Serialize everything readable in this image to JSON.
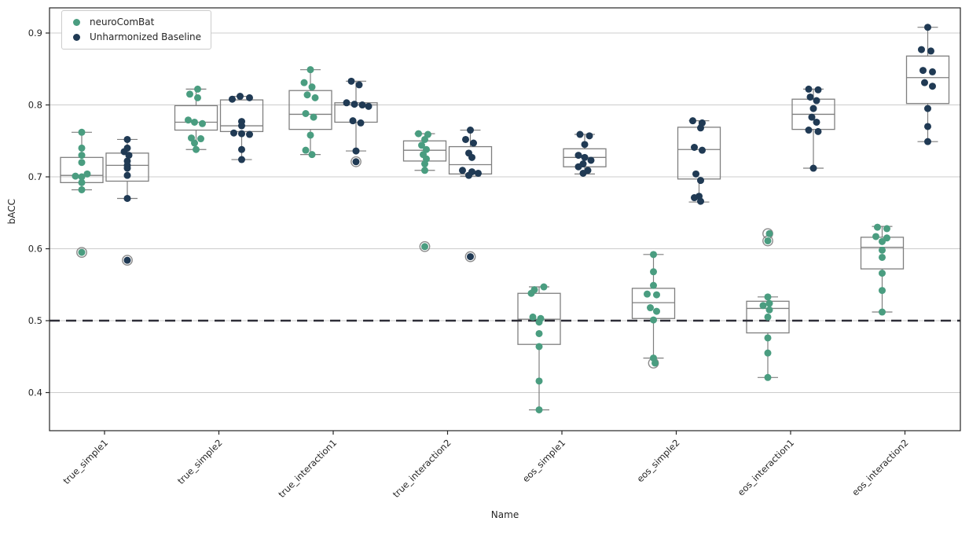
{
  "figure": {
    "ylabel": "bACC",
    "xlabel": "Name",
    "legend": {
      "items": [
        {
          "label": "neuroComBat",
          "color": "#4A9D80",
          "marker": "dot"
        },
        {
          "label": "Unharmonized Baseline",
          "color": "#203A54",
          "marker": "dot"
        }
      ]
    }
  },
  "chart_data": {
    "type": "box+strip",
    "title": "",
    "xlabel": "Name",
    "ylabel": "bACC",
    "ylim": [
      0.347,
      0.935
    ],
    "yticks": [
      0.4,
      0.5,
      0.6,
      0.7,
      0.8,
      0.9
    ],
    "grid": "horizontal",
    "legend_position": "upper left",
    "refline": {
      "y": 0.5,
      "style": "dashed",
      "color": "#2e2e38"
    },
    "categories": [
      "true_simple1",
      "true_simple2",
      "true_interaction1",
      "true_interaction2",
      "eos_simple1",
      "eos_simple2",
      "eos_interaction1",
      "eos_interaction2"
    ],
    "colors": {
      "grid": "#cccccc",
      "box_edge": "#7f7f7f",
      "spine": "#262626",
      "outlier_ring": "#8a8a8a"
    },
    "series": [
      {
        "name": "neuroComBat",
        "color": "#4A9D80",
        "groups": [
          {
            "box": {
              "q1": 0.692,
              "median": 0.702,
              "q3": 0.727,
              "lo": 0.682,
              "hi": 0.762,
              "outliers": [
                0.595
              ]
            },
            "points": [
              [
                0.762,
                0
              ],
              [
                0.74,
                0
              ],
              [
                0.73,
                0
              ],
              [
                0.72,
                0
              ],
              [
                0.704,
                7
              ],
              [
                0.701,
                -8
              ],
              [
                0.7,
                0
              ],
              [
                0.692,
                0
              ],
              [
                0.682,
                0
              ],
              [
                0.595,
                0
              ]
            ]
          },
          {
            "box": {
              "q1": 0.765,
              "median": 0.776,
              "q3": 0.799,
              "lo": 0.738,
              "hi": 0.822,
              "outliers": []
            },
            "points": [
              [
                0.822,
                2
              ],
              [
                0.815,
                -8
              ],
              [
                0.81,
                2
              ],
              [
                0.779,
                -10
              ],
              [
                0.776,
                -2
              ],
              [
                0.774,
                8
              ],
              [
                0.754,
                -6
              ],
              [
                0.753,
                6
              ],
              [
                0.747,
                -2
              ],
              [
                0.738,
                0
              ]
            ]
          },
          {
            "box": {
              "q1": 0.766,
              "median": 0.787,
              "q3": 0.82,
              "lo": 0.731,
              "hi": 0.849,
              "outliers": []
            },
            "points": [
              [
                0.849,
                0
              ],
              [
                0.831,
                -8
              ],
              [
                0.825,
                2
              ],
              [
                0.814,
                -4
              ],
              [
                0.81,
                6
              ],
              [
                0.788,
                -6
              ],
              [
                0.783,
                4
              ],
              [
                0.758,
                0
              ],
              [
                0.737,
                -6
              ],
              [
                0.731,
                2
              ]
            ]
          },
          {
            "box": {
              "q1": 0.722,
              "median": 0.737,
              "q3": 0.75,
              "lo": 0.709,
              "hi": 0.76,
              "outliers": [
                0.603
              ]
            },
            "points": [
              [
                0.76,
                -8
              ],
              [
                0.759,
                4
              ],
              [
                0.752,
                0
              ],
              [
                0.744,
                -4
              ],
              [
                0.738,
                2
              ],
              [
                0.731,
                -2
              ],
              [
                0.725,
                2
              ],
              [
                0.718,
                0
              ],
              [
                0.709,
                0
              ],
              [
                0.603,
                0
              ]
            ]
          },
          {
            "box": {
              "q1": 0.467,
              "median": 0.502,
              "q3": 0.538,
              "lo": 0.376,
              "hi": 0.547,
              "outliers": []
            },
            "points": [
              [
                0.547,
                6
              ],
              [
                0.543,
                -6
              ],
              [
                0.538,
                -10
              ],
              [
                0.505,
                -8
              ],
              [
                0.503,
                2
              ],
              [
                0.498,
                0
              ],
              [
                0.482,
                0
              ],
              [
                0.464,
                0
              ],
              [
                0.416,
                0
              ],
              [
                0.376,
                0
              ]
            ]
          },
          {
            "box": {
              "q1": 0.503,
              "median": 0.525,
              "q3": 0.545,
              "lo": 0.448,
              "hi": 0.592,
              "outliers": [
                0.441
              ]
            },
            "points": [
              [
                0.592,
                0
              ],
              [
                0.568,
                0
              ],
              [
                0.549,
                0
              ],
              [
                0.537,
                -8
              ],
              [
                0.536,
                4
              ],
              [
                0.518,
                -4
              ],
              [
                0.513,
                4
              ],
              [
                0.501,
                0
              ],
              [
                0.448,
                0
              ],
              [
                0.441,
                2
              ]
            ]
          },
          {
            "box": {
              "q1": 0.483,
              "median": 0.517,
              "q3": 0.527,
              "lo": 0.421,
              "hi": 0.533,
              "outliers": [
                0.621,
                0.611
              ]
            },
            "points": [
              [
                0.621,
                2
              ],
              [
                0.611,
                0
              ],
              [
                0.533,
                0
              ],
              [
                0.524,
                2
              ],
              [
                0.521,
                -6
              ],
              [
                0.515,
                2
              ],
              [
                0.505,
                0
              ],
              [
                0.476,
                0
              ],
              [
                0.455,
                0
              ],
              [
                0.421,
                0
              ]
            ]
          },
          {
            "box": {
              "q1": 0.572,
              "median": 0.602,
              "q3": 0.616,
              "lo": 0.512,
              "hi": 0.631,
              "outliers": []
            },
            "points": [
              [
                0.63,
                -6
              ],
              [
                0.628,
                6
              ],
              [
                0.617,
                -8
              ],
              [
                0.615,
                6
              ],
              [
                0.61,
                0
              ],
              [
                0.598,
                0
              ],
              [
                0.588,
                0
              ],
              [
                0.566,
                0
              ],
              [
                0.542,
                0
              ],
              [
                0.512,
                0
              ]
            ]
          }
        ]
      },
      {
        "name": "Unharmonized Baseline",
        "color": "#203A54",
        "groups": [
          {
            "box": {
              "q1": 0.694,
              "median": 0.716,
              "q3": 0.733,
              "lo": 0.67,
              "hi": 0.752,
              "outliers": [
                0.584
              ]
            },
            "points": [
              [
                0.752,
                0
              ],
              [
                0.74,
                0
              ],
              [
                0.735,
                -4
              ],
              [
                0.73,
                2
              ],
              [
                0.722,
                0
              ],
              [
                0.716,
                0
              ],
              [
                0.712,
                0
              ],
              [
                0.702,
                0
              ],
              [
                0.67,
                0
              ],
              [
                0.584,
                0
              ]
            ]
          },
          {
            "box": {
              "q1": 0.763,
              "median": 0.771,
              "q3": 0.807,
              "lo": 0.724,
              "hi": 0.812,
              "outliers": []
            },
            "points": [
              [
                0.812,
                -2
              ],
              [
                0.81,
                10
              ],
              [
                0.808,
                -12
              ],
              [
                0.777,
                0
              ],
              [
                0.771,
                0
              ],
              [
                0.761,
                -10
              ],
              [
                0.76,
                0
              ],
              [
                0.759,
                10
              ],
              [
                0.738,
                0
              ],
              [
                0.724,
                0
              ]
            ]
          },
          {
            "box": {
              "q1": 0.776,
              "median": 0.8,
              "q3": 0.803,
              "lo": 0.736,
              "hi": 0.833,
              "outliers": [
                0.721
              ]
            },
            "points": [
              [
                0.833,
                -6
              ],
              [
                0.828,
                4
              ],
              [
                0.803,
                -12
              ],
              [
                0.801,
                -2
              ],
              [
                0.8,
                8
              ],
              [
                0.798,
                16
              ],
              [
                0.778,
                -4
              ],
              [
                0.775,
                6
              ],
              [
                0.736,
                0
              ],
              [
                0.721,
                0
              ]
            ]
          },
          {
            "box": {
              "q1": 0.704,
              "median": 0.717,
              "q3": 0.742,
              "lo": 0.701,
              "hi": 0.765,
              "outliers": [
                0.589
              ]
            },
            "points": [
              [
                0.765,
                0
              ],
              [
                0.752,
                -6
              ],
              [
                0.747,
                4
              ],
              [
                0.733,
                -2
              ],
              [
                0.727,
                2
              ],
              [
                0.709,
                -10
              ],
              [
                0.707,
                2
              ],
              [
                0.705,
                10
              ],
              [
                0.702,
                -2
              ],
              [
                0.589,
                0
              ]
            ]
          },
          {
            "box": {
              "q1": 0.714,
              "median": 0.727,
              "q3": 0.739,
              "lo": 0.704,
              "hi": 0.759,
              "outliers": []
            },
            "points": [
              [
                0.759,
                -6
              ],
              [
                0.757,
                6
              ],
              [
                0.745,
                0
              ],
              [
                0.73,
                -8
              ],
              [
                0.727,
                0
              ],
              [
                0.723,
                8
              ],
              [
                0.718,
                -2
              ],
              [
                0.714,
                -8
              ],
              [
                0.709,
                4
              ],
              [
                0.705,
                -2
              ]
            ]
          },
          {
            "box": {
              "q1": 0.697,
              "median": 0.738,
              "q3": 0.769,
              "lo": 0.665,
              "hi": 0.778,
              "outliers": []
            },
            "points": [
              [
                0.778,
                -8
              ],
              [
                0.775,
                4
              ],
              [
                0.768,
                2
              ],
              [
                0.741,
                -6
              ],
              [
                0.737,
                4
              ],
              [
                0.704,
                -4
              ],
              [
                0.695,
                2
              ],
              [
                0.673,
                0
              ],
              [
                0.671,
                -6
              ],
              [
                0.666,
                2
              ]
            ]
          },
          {
            "box": {
              "q1": 0.766,
              "median": 0.787,
              "q3": 0.808,
              "lo": 0.712,
              "hi": 0.822,
              "outliers": []
            },
            "points": [
              [
                0.822,
                -6
              ],
              [
                0.821,
                6
              ],
              [
                0.811,
                -4
              ],
              [
                0.806,
                4
              ],
              [
                0.795,
                0
              ],
              [
                0.783,
                -2
              ],
              [
                0.776,
                4
              ],
              [
                0.765,
                -6
              ],
              [
                0.763,
                6
              ],
              [
                0.712,
                0
              ]
            ]
          },
          {
            "box": {
              "q1": 0.802,
              "median": 0.838,
              "q3": 0.868,
              "lo": 0.749,
              "hi": 0.908,
              "outliers": []
            },
            "points": [
              [
                0.908,
                0
              ],
              [
                0.877,
                -8
              ],
              [
                0.875,
                4
              ],
              [
                0.848,
                -6
              ],
              [
                0.846,
                6
              ],
              [
                0.831,
                -4
              ],
              [
                0.826,
                6
              ],
              [
                0.795,
                0
              ],
              [
                0.77,
                0
              ],
              [
                0.749,
                0
              ]
            ]
          }
        ]
      }
    ]
  }
}
